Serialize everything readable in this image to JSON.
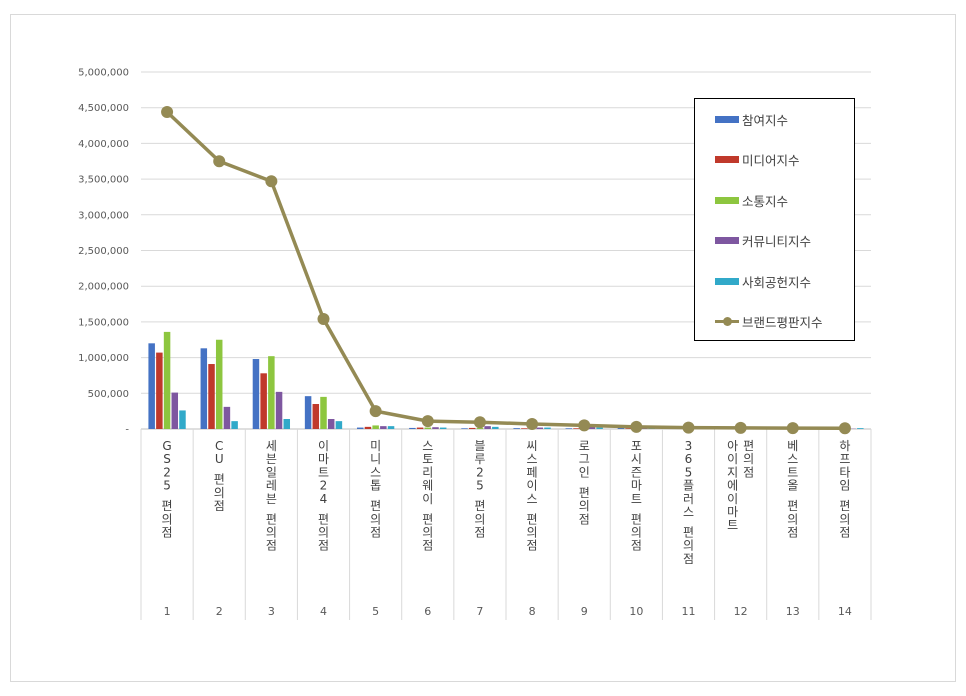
{
  "chart_data": {
    "type": "bar",
    "categories": [
      "GS25 편의점",
      "CU 편의점",
      "세븐일레븐 편의점",
      "이마트24 편의점",
      "미니스톱 편의점",
      "스토리웨이 편의점",
      "블루25 편의점",
      "씨스페이스 편의점",
      "로그인 편의점",
      "포시즌마트 편의점",
      "365플러스 편의점",
      "아이지에이마트 편의점",
      "베스트올 편의점",
      "하프타임 편의점"
    ],
    "index_labels": [
      "1",
      "2",
      "3",
      "4",
      "5",
      "6",
      "7",
      "8",
      "9",
      "10",
      "11",
      "12",
      "13",
      "14"
    ],
    "ylim": [
      0,
      5000000
    ],
    "yticks": [
      "-",
      "500,000",
      "1,000,000",
      "1,500,000",
      "2,000,000",
      "2,500,000",
      "3,000,000",
      "3,500,000",
      "4,000,000",
      "4,500,000",
      "5,000,000"
    ],
    "grid": true,
    "legend_position": "right",
    "series": [
      {
        "name": "참여지수",
        "type": "bar",
        "color": "#4472C4",
        "values": [
          1200000,
          1130000,
          980000,
          460000,
          20000,
          15000,
          10000,
          12000,
          10000,
          15000,
          8000,
          5000,
          4000,
          3000
        ]
      },
      {
        "name": "미디어지수",
        "type": "bar",
        "color": "#C0392B",
        "values": [
          1070000,
          910000,
          780000,
          350000,
          30000,
          20000,
          15000,
          10000,
          10000,
          8000,
          6000,
          5000,
          4000,
          3000
        ]
      },
      {
        "name": "소통지수",
        "type": "bar",
        "color": "#8DC63F",
        "values": [
          1360000,
          1250000,
          1020000,
          450000,
          50000,
          20000,
          15000,
          10000,
          10000,
          8000,
          6000,
          5000,
          4000,
          3000
        ]
      },
      {
        "name": "커뮤니티지수",
        "type": "bar",
        "color": "#7E57A0",
        "values": [
          510000,
          310000,
          520000,
          140000,
          40000,
          25000,
          40000,
          20000,
          30000,
          10000,
          8000,
          6000,
          5000,
          4000
        ]
      },
      {
        "name": "사회공헌지수",
        "type": "bar",
        "color": "#31A9C9",
        "values": [
          260000,
          110000,
          140000,
          110000,
          40000,
          20000,
          30000,
          20000,
          20000,
          10000,
          8000,
          6000,
          5000,
          12000
        ]
      },
      {
        "name": "브랜드평판지수",
        "type": "line",
        "color": "#948A54",
        "values": [
          4440000,
          3750000,
          3470000,
          1540000,
          250000,
          110000,
          95000,
          70000,
          50000,
          30000,
          20000,
          15000,
          12000,
          10000
        ]
      }
    ]
  }
}
